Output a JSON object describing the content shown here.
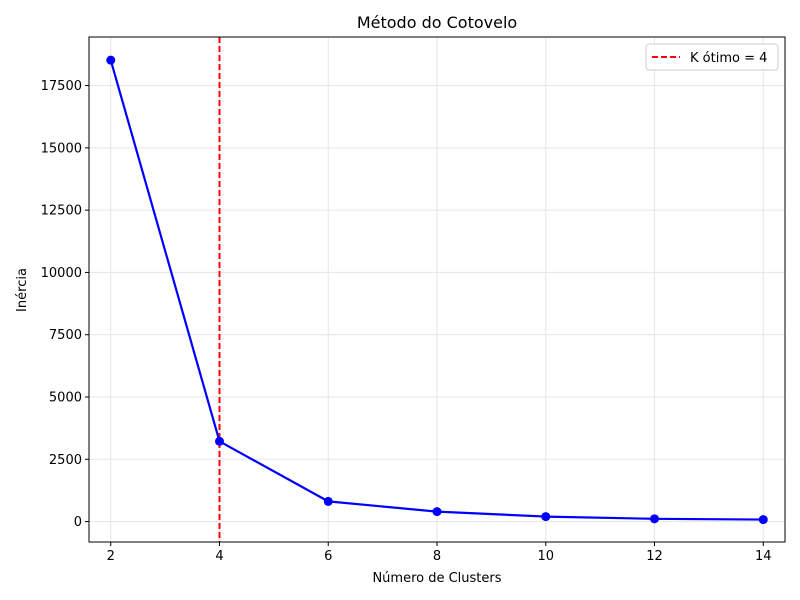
{
  "chart_data": {
    "type": "line",
    "title": "Método do Cotovelo",
    "xlabel": "Número de Clusters",
    "ylabel": "Inércia",
    "x": [
      2,
      4,
      6,
      8,
      10,
      12,
      14
    ],
    "series": [
      {
        "values": [
          18520,
          3220,
          810,
          400,
          200,
          110,
          80
        ],
        "color": "#0000ff"
      }
    ],
    "xlim": [
      1.6,
      14.4
    ],
    "ylim": [
      -820,
      19450
    ],
    "xticks": [
      2,
      4,
      6,
      8,
      10,
      12,
      14
    ],
    "yticks": [
      0,
      2500,
      5000,
      7500,
      10000,
      12500,
      15000,
      17500
    ],
    "vline": {
      "x": 4,
      "label": "K ótimo = 4",
      "color": "#ff0000"
    },
    "grid": true,
    "legend_position": "top-right"
  }
}
